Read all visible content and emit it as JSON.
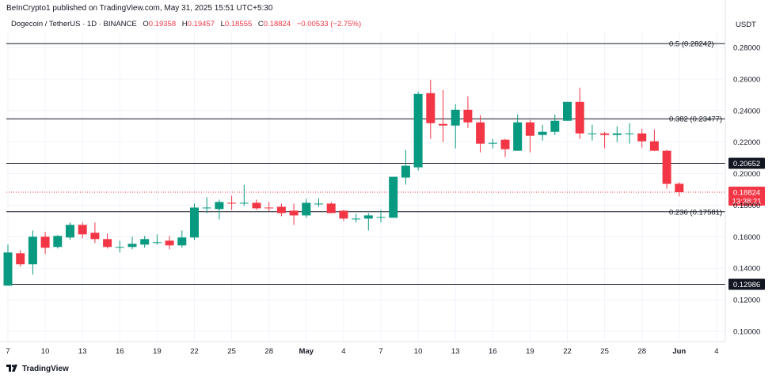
{
  "header": {
    "publisher": "BeInCrypto1 published on TradingView.com, May 31, 2025 15:51 UTC+5:30",
    "currency": "USDT"
  },
  "legend": {
    "symbol": "Dogecoin / TetherUS · 1D · BINANCE",
    "o_label": "O",
    "o_value": "0.19358",
    "h_label": "H",
    "h_value": "0.19457",
    "l_label": "L",
    "l_value": "0.18555",
    "c_label": "C",
    "c_value": "0.18824",
    "change": "−0.00533 (−2.75%)"
  },
  "footer": {
    "brand": "TradingView",
    "icon": "tradingview-logo-icon"
  },
  "colors": {
    "up": "#089981",
    "down": "#f23645",
    "grid": "#f0f3fa",
    "axis_text": "#131722",
    "level_line": "#131722"
  },
  "chart_data": {
    "type": "candlestick",
    "title": "",
    "xlabel": "",
    "ylabel": "",
    "ylim": [
      0.09,
      0.2925
    ],
    "grid": true,
    "y_ticks": [
      "0.28000",
      "0.26000",
      "0.24000",
      "0.22000",
      "0.20000",
      "0.18000",
      "0.16000",
      "0.14000",
      "0.12000",
      "0.10000"
    ],
    "x_ticks": [
      {
        "day": 7,
        "label": "7"
      },
      {
        "day": 10,
        "label": "10"
      },
      {
        "day": 13,
        "label": "13"
      },
      {
        "day": 16,
        "label": "16"
      },
      {
        "day": 19,
        "label": "19"
      },
      {
        "day": 22,
        "label": "22"
      },
      {
        "day": 25,
        "label": "25"
      },
      {
        "day": 28,
        "label": "28"
      },
      {
        "day": 31,
        "label": "May"
      },
      {
        "day": 34,
        "label": "4"
      },
      {
        "day": 37,
        "label": "7"
      },
      {
        "day": 40,
        "label": "10"
      },
      {
        "day": 43,
        "label": "13"
      },
      {
        "day": 46,
        "label": "16"
      },
      {
        "day": 49,
        "label": "19"
      },
      {
        "day": 52,
        "label": "22"
      },
      {
        "day": 55,
        "label": "25"
      },
      {
        "day": 58,
        "label": "28"
      },
      {
        "day": 61,
        "label": "Jun"
      },
      {
        "day": 64,
        "label": "4"
      }
    ],
    "levels": [
      {
        "label": "0.5 (0.28242)",
        "value": 0.28242,
        "style": "text"
      },
      {
        "label": "0.382 (0.23477)",
        "value": 0.23477,
        "style": "text"
      },
      {
        "label": "0.20652",
        "value": 0.20652,
        "style": "badge"
      },
      {
        "label": "0.236 (0.17581)",
        "value": 0.17581,
        "style": "text"
      },
      {
        "label": "0.12986",
        "value": 0.12986,
        "style": "badge"
      }
    ],
    "last_price": {
      "value": 0.18824,
      "label": "0.18824",
      "countdown": "13:38:21"
    },
    "candles": [
      {
        "d": 7,
        "o": 0.129,
        "h": 0.155,
        "l": 0.129,
        "c": 0.15
      },
      {
        "d": 8,
        "o": 0.1495,
        "h": 0.1515,
        "l": 0.141,
        "c": 0.1425
      },
      {
        "d": 9,
        "o": 0.1425,
        "h": 0.164,
        "l": 0.136,
        "c": 0.16
      },
      {
        "d": 10,
        "o": 0.16,
        "h": 0.163,
        "l": 0.149,
        "c": 0.153
      },
      {
        "d": 11,
        "o": 0.1535,
        "h": 0.161,
        "l": 0.1525,
        "c": 0.1605
      },
      {
        "d": 12,
        "o": 0.1595,
        "h": 0.169,
        "l": 0.158,
        "c": 0.1675
      },
      {
        "d": 13,
        "o": 0.1675,
        "h": 0.169,
        "l": 0.159,
        "c": 0.1615
      },
      {
        "d": 14,
        "o": 0.1625,
        "h": 0.169,
        "l": 0.156,
        "c": 0.1585
      },
      {
        "d": 15,
        "o": 0.1585,
        "h": 0.162,
        "l": 0.1525,
        "c": 0.1535
      },
      {
        "d": 16,
        "o": 0.1535,
        "h": 0.1575,
        "l": 0.15,
        "c": 0.1535
      },
      {
        "d": 17,
        "o": 0.1535,
        "h": 0.16,
        "l": 0.152,
        "c": 0.1555
      },
      {
        "d": 18,
        "o": 0.155,
        "h": 0.1605,
        "l": 0.153,
        "c": 0.1585
      },
      {
        "d": 19,
        "o": 0.1565,
        "h": 0.1615,
        "l": 0.155,
        "c": 0.1565
      },
      {
        "d": 20,
        "o": 0.1575,
        "h": 0.1605,
        "l": 0.152,
        "c": 0.1545
      },
      {
        "d": 21,
        "o": 0.1545,
        "h": 0.164,
        "l": 0.153,
        "c": 0.1595
      },
      {
        "d": 22,
        "o": 0.1595,
        "h": 0.181,
        "l": 0.158,
        "c": 0.1785
      },
      {
        "d": 23,
        "o": 0.1785,
        "h": 0.185,
        "l": 0.175,
        "c": 0.1785
      },
      {
        "d": 24,
        "o": 0.1775,
        "h": 0.1835,
        "l": 0.171,
        "c": 0.182
      },
      {
        "d": 25,
        "o": 0.1815,
        "h": 0.186,
        "l": 0.177,
        "c": 0.181
      },
      {
        "d": 26,
        "o": 0.1815,
        "h": 0.193,
        "l": 0.1795,
        "c": 0.1815
      },
      {
        "d": 27,
        "o": 0.1815,
        "h": 0.1835,
        "l": 0.177,
        "c": 0.178
      },
      {
        "d": 28,
        "o": 0.1785,
        "h": 0.182,
        "l": 0.176,
        "c": 0.178
      },
      {
        "d": 29,
        "o": 0.179,
        "h": 0.181,
        "l": 0.173,
        "c": 0.175
      },
      {
        "d": 30,
        "o": 0.1765,
        "h": 0.181,
        "l": 0.1675,
        "c": 0.1735
      },
      {
        "d": 31,
        "o": 0.1735,
        "h": 0.184,
        "l": 0.172,
        "c": 0.1815
      },
      {
        "d": 32,
        "o": 0.1805,
        "h": 0.1845,
        "l": 0.179,
        "c": 0.181
      },
      {
        "d": 33,
        "o": 0.181,
        "h": 0.182,
        "l": 0.175,
        "c": 0.175
      },
      {
        "d": 34,
        "o": 0.1765,
        "h": 0.177,
        "l": 0.17,
        "c": 0.1715
      },
      {
        "d": 35,
        "o": 0.1715,
        "h": 0.1745,
        "l": 0.169,
        "c": 0.1715
      },
      {
        "d": 36,
        "o": 0.1715,
        "h": 0.175,
        "l": 0.164,
        "c": 0.1735
      },
      {
        "d": 37,
        "o": 0.1725,
        "h": 0.177,
        "l": 0.169,
        "c": 0.1725
      },
      {
        "d": 38,
        "o": 0.172,
        "h": 0.198,
        "l": 0.172,
        "c": 0.198
      },
      {
        "d": 39,
        "o": 0.1975,
        "h": 0.215,
        "l": 0.193,
        "c": 0.205
      },
      {
        "d": 40,
        "o": 0.204,
        "h": 0.252,
        "l": 0.202,
        "c": 0.2505
      },
      {
        "d": 41,
        "o": 0.251,
        "h": 0.2595,
        "l": 0.222,
        "c": 0.232
      },
      {
        "d": 42,
        "o": 0.2315,
        "h": 0.253,
        "l": 0.22,
        "c": 0.2305
      },
      {
        "d": 43,
        "o": 0.2305,
        "h": 0.244,
        "l": 0.216,
        "c": 0.2405
      },
      {
        "d": 44,
        "o": 0.2405,
        "h": 0.249,
        "l": 0.229,
        "c": 0.2325
      },
      {
        "d": 45,
        "o": 0.2325,
        "h": 0.237,
        "l": 0.2135,
        "c": 0.219
      },
      {
        "d": 46,
        "o": 0.219,
        "h": 0.222,
        "l": 0.216,
        "c": 0.2195
      },
      {
        "d": 47,
        "o": 0.2215,
        "h": 0.222,
        "l": 0.2105,
        "c": 0.2155
      },
      {
        "d": 48,
        "o": 0.2145,
        "h": 0.2375,
        "l": 0.2145,
        "c": 0.2325
      },
      {
        "d": 49,
        "o": 0.2325,
        "h": 0.234,
        "l": 0.2135,
        "c": 0.224
      },
      {
        "d": 50,
        "o": 0.2245,
        "h": 0.231,
        "l": 0.221,
        "c": 0.2265
      },
      {
        "d": 51,
        "o": 0.2265,
        "h": 0.2375,
        "l": 0.2245,
        "c": 0.2335
      },
      {
        "d": 52,
        "o": 0.2335,
        "h": 0.2455,
        "l": 0.2335,
        "c": 0.2455
      },
      {
        "d": 53,
        "o": 0.2455,
        "h": 0.2545,
        "l": 0.222,
        "c": 0.2255
      },
      {
        "d": 54,
        "o": 0.2255,
        "h": 0.231,
        "l": 0.221,
        "c": 0.2255
      },
      {
        "d": 55,
        "o": 0.2255,
        "h": 0.2265,
        "l": 0.216,
        "c": 0.2245
      },
      {
        "d": 56,
        "o": 0.2245,
        "h": 0.23,
        "l": 0.22,
        "c": 0.2255
      },
      {
        "d": 57,
        "o": 0.2255,
        "h": 0.232,
        "l": 0.219,
        "c": 0.2255
      },
      {
        "d": 58,
        "o": 0.2255,
        "h": 0.2285,
        "l": 0.2165,
        "c": 0.2205
      },
      {
        "d": 59,
        "o": 0.2205,
        "h": 0.228,
        "l": 0.2145,
        "c": 0.2145
      },
      {
        "d": 60,
        "o": 0.2145,
        "h": 0.215,
        "l": 0.1905,
        "c": 0.1935
      },
      {
        "d": 61,
        "o": 0.19358,
        "h": 0.19457,
        "l": 0.18555,
        "c": 0.18824
      }
    ]
  }
}
